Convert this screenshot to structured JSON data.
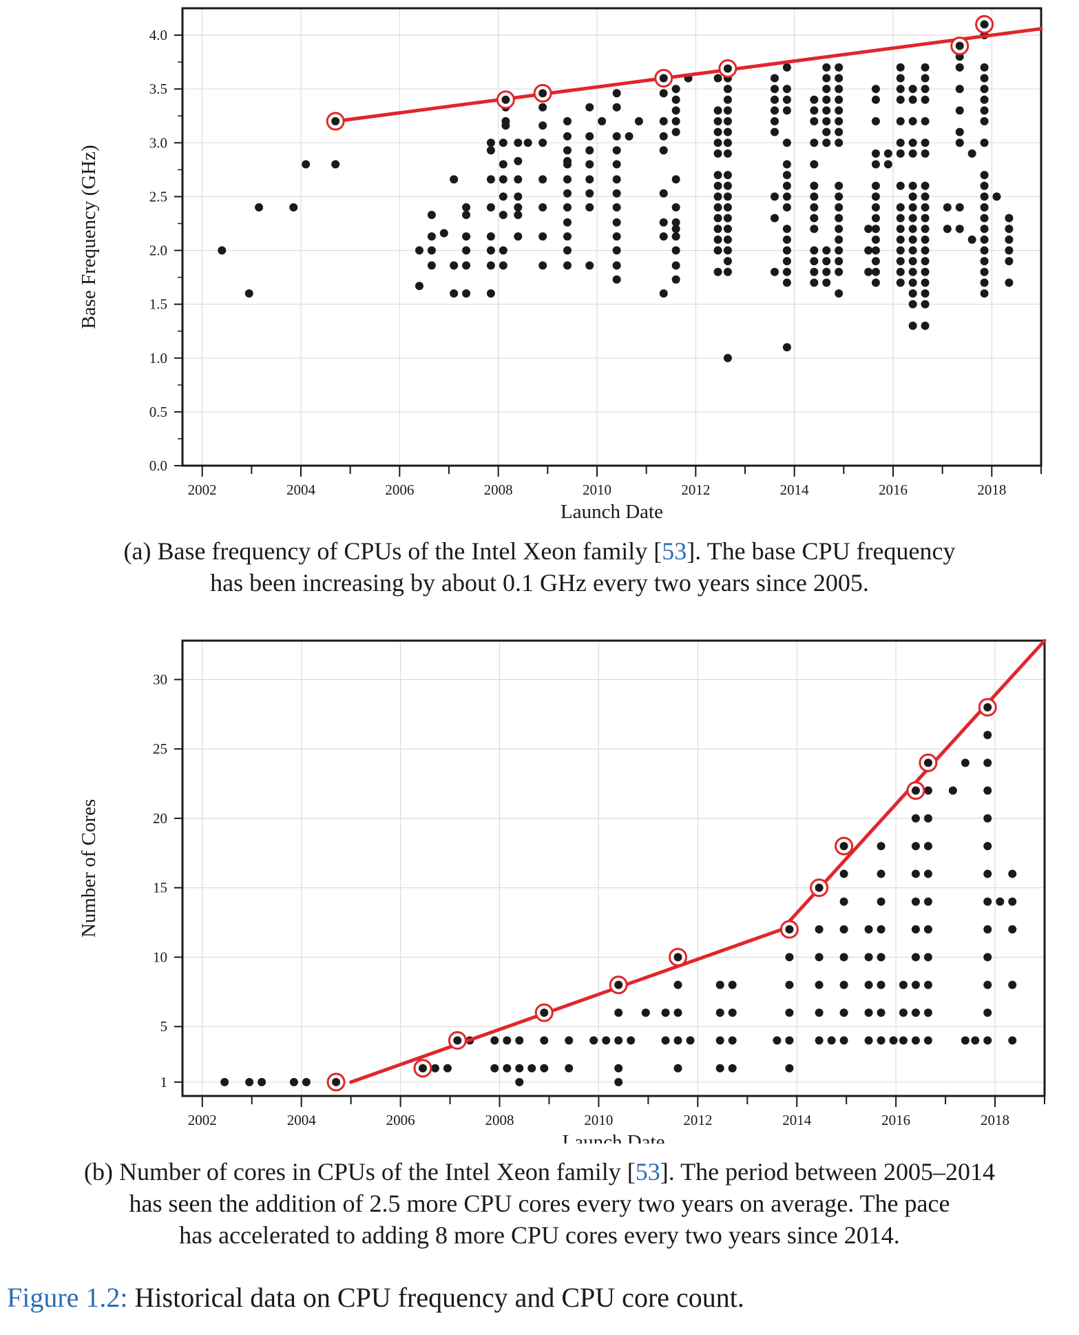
{
  "chart_data": [
    {
      "type": "scatter",
      "title": "",
      "xlabel": "Launch Date",
      "ylabel": "Base Frequency (GHz)",
      "xlim": [
        2001.6,
        2019.0
      ],
      "ylim": [
        0.0,
        4.25
      ],
      "xticks": [
        2002,
        2004,
        2006,
        2008,
        2010,
        2012,
        2014,
        2016,
        2018
      ],
      "yticks": [
        "0.0",
        "0.5",
        "1.0",
        "1.5",
        "2.0",
        "2.5",
        "3.0",
        "3.5",
        "4.0"
      ],
      "grid": true,
      "trend_lines": [
        {
          "x": [
            2004.7,
            2019.0
          ],
          "y": [
            3.2,
            4.06
          ]
        }
      ],
      "highlighted": [
        {
          "x": 2004.7,
          "y": 3.2
        },
        {
          "x": 2008.15,
          "y": 3.4
        },
        {
          "x": 2008.9,
          "y": 3.46
        },
        {
          "x": 2011.35,
          "y": 3.6
        },
        {
          "x": 2012.65,
          "y": 3.69
        },
        {
          "x": 2017.35,
          "y": 3.9
        },
        {
          "x": 2017.85,
          "y": 4.1
        }
      ],
      "columns": [
        {
          "x": 2002.4,
          "y": [
            2.0
          ]
        },
        {
          "x": 2002.95,
          "y": [
            1.6
          ]
        },
        {
          "x": 2003.15,
          "y": [
            2.4
          ]
        },
        {
          "x": 2003.85,
          "y": [
            2.4
          ]
        },
        {
          "x": 2004.1,
          "y": [
            2.8
          ]
        },
        {
          "x": 2004.7,
          "y": [
            3.2,
            2.8
          ]
        },
        {
          "x": 2006.4,
          "y": [
            2.0,
            1.67
          ]
        },
        {
          "x": 2006.65,
          "y": [
            2.33,
            2.13,
            2.0,
            1.86
          ]
        },
        {
          "x": 2006.9,
          "y": [
            2.16
          ]
        },
        {
          "x": 2007.1,
          "y": [
            2.66,
            1.86,
            1.6
          ]
        },
        {
          "x": 2007.35,
          "y": [
            2.4,
            2.33,
            2.13,
            2.0,
            1.86,
            1.6
          ]
        },
        {
          "x": 2007.85,
          "y": [
            3.0,
            2.93,
            2.66,
            2.4,
            2.13,
            2.0,
            1.86,
            1.6
          ]
        },
        {
          "x": 2008.1,
          "y": [
            3.0,
            2.8,
            2.66,
            2.5,
            2.33,
            2.0,
            1.86
          ]
        },
        {
          "x": 2008.15,
          "y": [
            3.4,
            3.33,
            3.2,
            3.16
          ]
        },
        {
          "x": 2008.4,
          "y": [
            3.0,
            2.83,
            2.66,
            2.5,
            2.4,
            2.33,
            2.13
          ]
        },
        {
          "x": 2008.6,
          "y": [
            3.0
          ]
        },
        {
          "x": 2008.9,
          "y": [
            3.46,
            3.33,
            3.16,
            3.0,
            2.66,
            2.4,
            2.13,
            1.86
          ]
        },
        {
          "x": 2009.4,
          "y": [
            3.2,
            3.06,
            2.93,
            2.83,
            2.8,
            2.66,
            2.53,
            2.4,
            2.26,
            2.13,
            2.0,
            1.86
          ]
        },
        {
          "x": 2009.85,
          "y": [
            3.33,
            3.06,
            2.93,
            2.8,
            2.66,
            2.53,
            2.4,
            1.86
          ]
        },
        {
          "x": 2010.1,
          "y": [
            3.2
          ]
        },
        {
          "x": 2010.4,
          "y": [
            3.46,
            3.33,
            3.06,
            2.93,
            2.8,
            2.66,
            2.53,
            2.4,
            2.26,
            2.13,
            2.0,
            1.86,
            1.73
          ]
        },
        {
          "x": 2010.65,
          "y": [
            3.06
          ]
        },
        {
          "x": 2010.85,
          "y": [
            3.2
          ]
        },
        {
          "x": 2011.35,
          "y": [
            3.6,
            3.46,
            3.2,
            3.06,
            2.93,
            2.53,
            2.26,
            2.13,
            1.6
          ]
        },
        {
          "x": 2011.6,
          "y": [
            3.5,
            3.4,
            3.3,
            3.2,
            3.1,
            2.66,
            2.4,
            2.26,
            2.2,
            2.13,
            2.0,
            1.86,
            1.73
          ]
        },
        {
          "x": 2011.85,
          "y": [
            3.6
          ]
        },
        {
          "x": 2012.45,
          "y": [
            3.6,
            3.3,
            3.2,
            3.1,
            3.0,
            2.9,
            2.7,
            2.6,
            2.5,
            2.4,
            2.3,
            2.2,
            2.1,
            2.0,
            1.8
          ]
        },
        {
          "x": 2012.65,
          "y": [
            3.69,
            3.6,
            3.5,
            3.4,
            3.3,
            3.2,
            3.1,
            3.0,
            2.9,
            2.7,
            2.6,
            2.5,
            2.4,
            2.3,
            2.2,
            2.1,
            2.0,
            1.9,
            1.8,
            1.0
          ]
        },
        {
          "x": 2013.6,
          "y": [
            3.6,
            3.5,
            3.4,
            3.3,
            3.2,
            3.1,
            2.5,
            2.3,
            1.8
          ]
        },
        {
          "x": 2013.85,
          "y": [
            3.7,
            3.5,
            3.4,
            3.3,
            3.0,
            2.8,
            2.7,
            2.6,
            2.5,
            2.4,
            2.2,
            2.1,
            2.0,
            1.9,
            1.8,
            1.7,
            1.1
          ]
        },
        {
          "x": 2014.4,
          "y": [
            3.4,
            3.3,
            3.2,
            3.0,
            2.8,
            2.6,
            2.5,
            2.4,
            2.3,
            2.2,
            2.0,
            1.9,
            1.8,
            1.7
          ]
        },
        {
          "x": 2014.65,
          "y": [
            3.7,
            3.6,
            3.5,
            3.4,
            3.3,
            3.2,
            3.1,
            3.0,
            2.0,
            1.9,
            1.8,
            1.7
          ]
        },
        {
          "x": 2014.9,
          "y": [
            3.7,
            3.6,
            3.5,
            3.4,
            3.3,
            3.2,
            3.1,
            3.0,
            2.6,
            2.5,
            2.4,
            2.3,
            2.2,
            2.1,
            2.0,
            1.9,
            1.8,
            1.6
          ]
        },
        {
          "x": 2015.5,
          "y": [
            2.2,
            2.0,
            1.8
          ]
        },
        {
          "x": 2015.65,
          "y": [
            3.5,
            3.4,
            3.2,
            2.9,
            2.8,
            2.6,
            2.5,
            2.4,
            2.3,
            2.2,
            2.1,
            2.0,
            1.9,
            1.8,
            1.7
          ]
        },
        {
          "x": 2015.9,
          "y": [
            2.9,
            2.8
          ]
        },
        {
          "x": 2016.15,
          "y": [
            3.7,
            3.6,
            3.5,
            3.4,
            3.2,
            3.0,
            2.9,
            2.6,
            2.4,
            2.3,
            2.2,
            2.1,
            2.0,
            1.9,
            1.8,
            1.7
          ]
        },
        {
          "x": 2016.4,
          "y": [
            3.5,
            3.4,
            3.2,
            3.0,
            2.9,
            2.6,
            2.5,
            2.4,
            2.3,
            2.2,
            2.1,
            2.0,
            1.9,
            1.8,
            1.7,
            1.6,
            1.5,
            1.3
          ]
        },
        {
          "x": 2016.65,
          "y": [
            3.7,
            3.6,
            3.5,
            3.4,
            3.2,
            3.0,
            2.9,
            2.6,
            2.5,
            2.4,
            2.3,
            2.2,
            2.1,
            2.0,
            1.9,
            1.8,
            1.7,
            1.6,
            1.5,
            1.3
          ]
        },
        {
          "x": 2017.1,
          "y": [
            2.4,
            2.2
          ]
        },
        {
          "x": 2017.35,
          "y": [
            3.9,
            3.8,
            3.7,
            3.5,
            3.3,
            3.1,
            3.0,
            2.4,
            2.2
          ]
        },
        {
          "x": 2017.6,
          "y": [
            2.9,
            2.1
          ]
        },
        {
          "x": 2017.85,
          "y": [
            4.1,
            4.0,
            3.7,
            3.6,
            3.5,
            3.4,
            3.3,
            3.2,
            3.0,
            2.7,
            2.6,
            2.5,
            2.4,
            2.3,
            2.2,
            2.1,
            2.0,
            1.9,
            1.8,
            1.7,
            1.6
          ]
        },
        {
          "x": 2018.1,
          "y": [
            2.5
          ]
        },
        {
          "x": 2018.35,
          "y": [
            2.3,
            2.2,
            2.1,
            2.0,
            1.9,
            1.7
          ]
        }
      ]
    },
    {
      "type": "scatter",
      "title": "",
      "xlabel": "Launch Date",
      "ylabel": "Number of Cores",
      "xlim": [
        2001.6,
        2019.0
      ],
      "ylim": [
        0,
        32.8
      ],
      "xticks": [
        2002,
        2004,
        2006,
        2008,
        2010,
        2012,
        2014,
        2016,
        2018
      ],
      "yticks": [
        "1",
        "5",
        "10",
        "15",
        "20",
        "25",
        "30"
      ],
      "ytick_values": [
        1,
        5,
        10,
        15,
        20,
        25,
        30
      ],
      "grid": true,
      "trend_lines": [
        {
          "x": [
            2005.0,
            2013.7
          ],
          "y": [
            1.0,
            12.0
          ]
        },
        {
          "x": [
            2013.7,
            2019.0
          ],
          "y": [
            12.0,
            32.8
          ]
        }
      ],
      "highlighted": [
        {
          "x": 2004.7,
          "y": 1
        },
        {
          "x": 2006.45,
          "y": 2
        },
        {
          "x": 2007.15,
          "y": 4
        },
        {
          "x": 2008.9,
          "y": 6
        },
        {
          "x": 2010.4,
          "y": 8
        },
        {
          "x": 2011.6,
          "y": 10
        },
        {
          "x": 2013.85,
          "y": 12
        },
        {
          "x": 2014.45,
          "y": 15
        },
        {
          "x": 2014.95,
          "y": 18
        },
        {
          "x": 2016.4,
          "y": 22
        },
        {
          "x": 2016.65,
          "y": 24
        },
        {
          "x": 2017.85,
          "y": 28
        }
      ],
      "columns": [
        {
          "x": 2002.45,
          "y": [
            1
          ]
        },
        {
          "x": 2002.95,
          "y": [
            1
          ]
        },
        {
          "x": 2003.2,
          "y": [
            1
          ]
        },
        {
          "x": 2003.85,
          "y": [
            1
          ]
        },
        {
          "x": 2004.1,
          "y": [
            1
          ]
        },
        {
          "x": 2004.7,
          "y": [
            1
          ]
        },
        {
          "x": 2006.45,
          "y": [
            2
          ]
        },
        {
          "x": 2006.7,
          "y": [
            2
          ]
        },
        {
          "x": 2006.95,
          "y": [
            2
          ]
        },
        {
          "x": 2007.15,
          "y": [
            4
          ]
        },
        {
          "x": 2007.4,
          "y": [
            4
          ]
        },
        {
          "x": 2007.9,
          "y": [
            4,
            2
          ]
        },
        {
          "x": 2008.15,
          "y": [
            4,
            2
          ]
        },
        {
          "x": 2008.4,
          "y": [
            4,
            2,
            1
          ]
        },
        {
          "x": 2008.65,
          "y": [
            2
          ]
        },
        {
          "x": 2008.9,
          "y": [
            6,
            4,
            2
          ]
        },
        {
          "x": 2009.4,
          "y": [
            4,
            2
          ]
        },
        {
          "x": 2009.9,
          "y": [
            4
          ]
        },
        {
          "x": 2010.15,
          "y": [
            4
          ]
        },
        {
          "x": 2010.4,
          "y": [
            8,
            6,
            4,
            2,
            1
          ]
        },
        {
          "x": 2010.65,
          "y": [
            4
          ]
        },
        {
          "x": 2010.95,
          "y": [
            6
          ]
        },
        {
          "x": 2011.35,
          "y": [
            6,
            4
          ]
        },
        {
          "x": 2011.6,
          "y": [
            10,
            8,
            6,
            4,
            2
          ]
        },
        {
          "x": 2011.85,
          "y": [
            4
          ]
        },
        {
          "x": 2012.45,
          "y": [
            8,
            6,
            4,
            2
          ]
        },
        {
          "x": 2012.7,
          "y": [
            8,
            6,
            4,
            2
          ]
        },
        {
          "x": 2013.6,
          "y": [
            4
          ]
        },
        {
          "x": 2013.85,
          "y": [
            12,
            10,
            8,
            6,
            4,
            2
          ]
        },
        {
          "x": 2014.45,
          "y": [
            15,
            12,
            10,
            8,
            6,
            4
          ]
        },
        {
          "x": 2014.7,
          "y": [
            4
          ]
        },
        {
          "x": 2014.95,
          "y": [
            18,
            16,
            14,
            12,
            10,
            8,
            6,
            4
          ]
        },
        {
          "x": 2015.45,
          "y": [
            12,
            10,
            8,
            6,
            4
          ]
        },
        {
          "x": 2015.7,
          "y": [
            18,
            16,
            14,
            12,
            10,
            8,
            6,
            4
          ]
        },
        {
          "x": 2015.95,
          "y": [
            4
          ]
        },
        {
          "x": 2016.15,
          "y": [
            8,
            6,
            4
          ]
        },
        {
          "x": 2016.4,
          "y": [
            22,
            20,
            18,
            16,
            14,
            12,
            10,
            8,
            6,
            4
          ]
        },
        {
          "x": 2016.65,
          "y": [
            24,
            22,
            20,
            18,
            16,
            14,
            12,
            10,
            8,
            6,
            4
          ]
        },
        {
          "x": 2017.15,
          "y": [
            22
          ]
        },
        {
          "x": 2017.4,
          "y": [
            24,
            4
          ]
        },
        {
          "x": 2017.6,
          "y": [
            4
          ]
        },
        {
          "x": 2017.85,
          "y": [
            28,
            26,
            24,
            22,
            20,
            18,
            16,
            14,
            12,
            10,
            8,
            6,
            4
          ]
        },
        {
          "x": 2018.1,
          "y": [
            14
          ]
        },
        {
          "x": 2018.35,
          "y": [
            16,
            14,
            12,
            8,
            4
          ]
        }
      ]
    }
  ],
  "captions": {
    "a": {
      "prefix": "(a) Base frequency of CPUs of the Intel Xeon family [",
      "cite": "53",
      "line1_rest": "]. The base CPU frequency",
      "line2": "has been increasing by about 0.1 GHz every two years since 2005."
    },
    "b": {
      "prefix": "(b) Number of cores in CPUs of the Intel Xeon family [",
      "cite": "53",
      "line1_rest": "]. The period between 2005–2014",
      "line2": "has seen the addition of 2.5 more CPU cores every two years on average. The pace",
      "line3": "has accelerated to adding 8 more CPU cores every two years since 2014."
    }
  },
  "figure": {
    "label": "Figure 1.2:",
    "text": " Historical data on CPU frequency and CPU core count."
  },
  "colors": {
    "trend": "#e0262b",
    "dot": "#1a1a1a",
    "grid": "#d6d6d6",
    "cite": "#2a6db5"
  }
}
